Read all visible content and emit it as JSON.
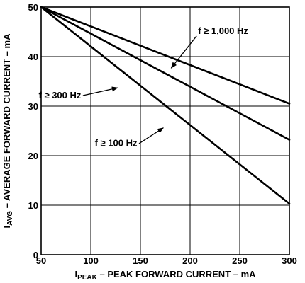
{
  "chart_data": {
    "type": "line",
    "title": "",
    "xlabel": {
      "main": "I",
      "sub": "PEAK",
      "rest": " – PEAK FORWARD CURRENT – mA"
    },
    "ylabel": {
      "main": "I",
      "sub": "AVG",
      "rest": " – AVERAGE FORWARD CURRENT – mA"
    },
    "xlim": [
      50,
      300
    ],
    "ylim": [
      0,
      50
    ],
    "xticks": [
      "50",
      "100",
      "150",
      "200",
      "250",
      "300"
    ],
    "yticks": [
      "0",
      "10",
      "20",
      "30",
      "40",
      "50"
    ],
    "grid": true,
    "series": [
      {
        "name": "f ≥ 1,000 Hz",
        "x": [
          50,
          300
        ],
        "y": [
          50,
          30.5
        ]
      },
      {
        "name": "f ≥ 300 Hz",
        "x": [
          50,
          300
        ],
        "y": [
          50,
          23.2
        ]
      },
      {
        "name": "f ≥ 100 Hz",
        "x": [
          50,
          300
        ],
        "y": [
          50,
          10.3
        ]
      }
    ],
    "annotations": [
      {
        "text": "f ≥ 1,000 Hz",
        "series": 0,
        "anchor_label": [
          208,
          44.6
        ],
        "arrow_to": [
          181,
          37.7
        ],
        "align": "start"
      },
      {
        "text": "f ≥ 300 Hz",
        "series": 1,
        "anchor_label": [
          47.5,
          31.6
        ],
        "arrow_to": [
          127,
          33.7
        ],
        "align": "start"
      },
      {
        "text": "f ≥ 100 Hz",
        "series": 2,
        "anchor_label": [
          104,
          21.9
        ],
        "arrow_to": [
          173,
          25.6
        ],
        "align": "start"
      }
    ]
  }
}
